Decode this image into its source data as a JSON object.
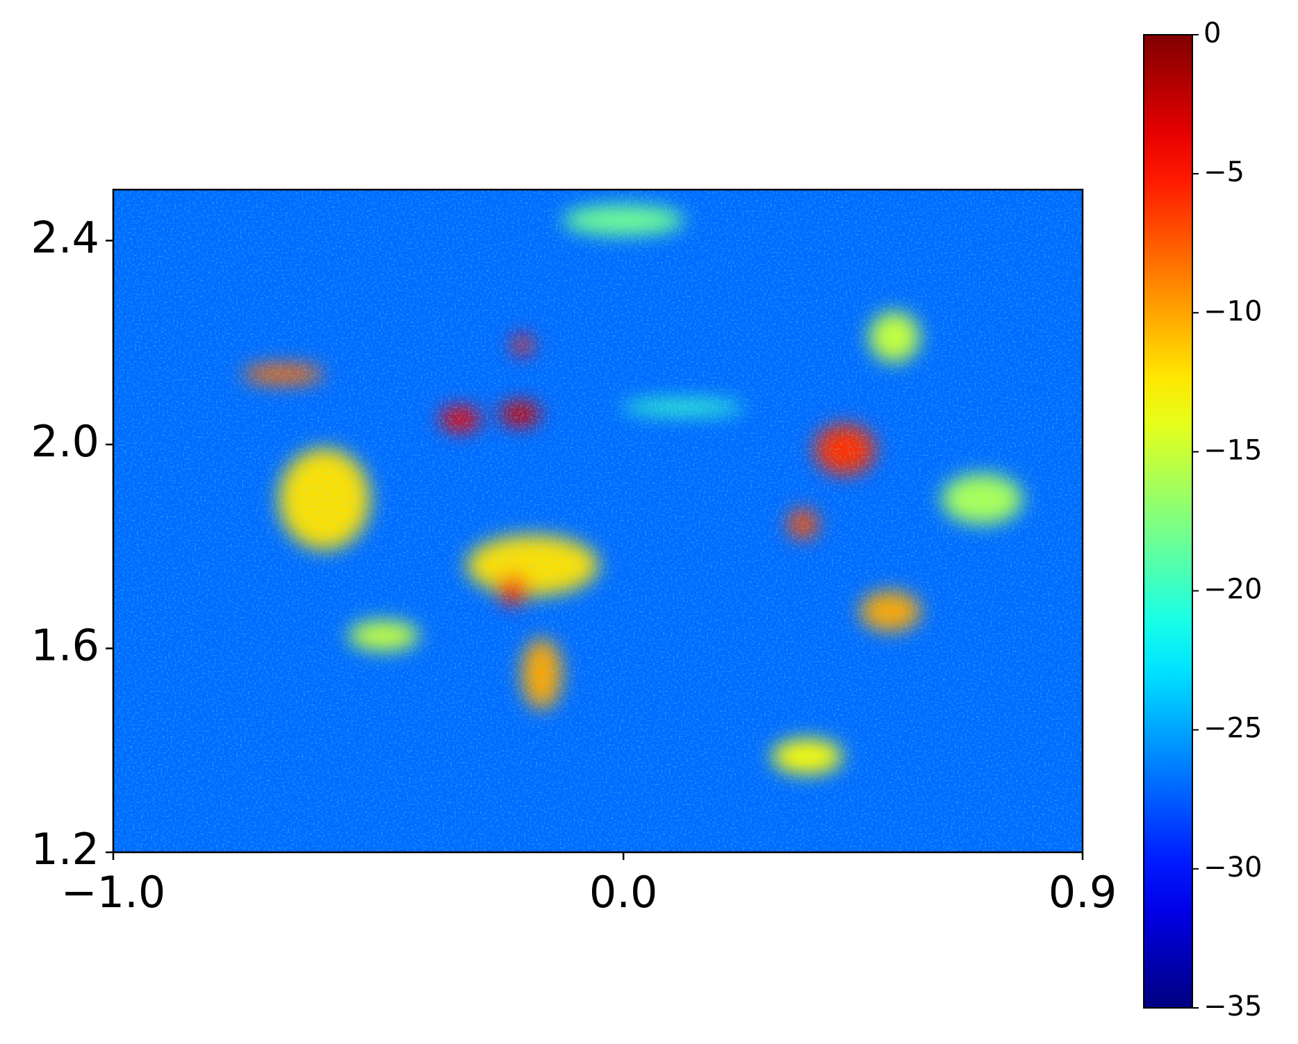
{
  "chart_data": {
    "type": "heatmap",
    "colormap": "jet",
    "xlim": [
      -1.0,
      0.9
    ],
    "xticks": [
      {
        "value": -1.0,
        "label": "−1.0"
      },
      {
        "value": 0,
        "label": "0.0"
      },
      0.9
    ],
    "ylim": [
      1.2,
      2.5
    ],
    "yticks": [
      1.2,
      1.6,
      {
        "value": 2,
        "label": "2.0"
      },
      2.4
    ],
    "clim": [
      -35,
      0
    ],
    "cticks": [
      {
        "value": 0,
        "label": "0"
      },
      {
        "value": -5,
        "label": "−5"
      },
      {
        "value": -10,
        "label": "−10"
      },
      {
        "value": -15,
        "label": "−15"
      },
      {
        "value": -20,
        "label": "−20"
      },
      {
        "value": -25,
        "label": "−25"
      },
      {
        "value": -30,
        "label": "−30"
      },
      {
        "value": -35,
        "label": "−35"
      }
    ],
    "background": -27,
    "spots": [
      {
        "x": 0.116,
        "y": 2.073,
        "rx": 0.12,
        "ry": 0.015,
        "value": -20
      },
      {
        "x": 0.0,
        "y": 2.44,
        "rx": 0.12,
        "ry": 0.03,
        "value": -18
      },
      {
        "x": 0.703,
        "y": 1.893,
        "rx": 0.08,
        "ry": 0.05,
        "value": -16
      },
      {
        "x": 0.531,
        "y": 2.211,
        "rx": 0.05,
        "ry": 0.05,
        "value": -15
      },
      {
        "x": -0.47,
        "y": 1.625,
        "rx": 0.07,
        "ry": 0.03,
        "value": -15
      },
      {
        "x": 0.36,
        "y": 1.388,
        "rx": 0.07,
        "ry": 0.035,
        "value": -13
      },
      {
        "x": -0.586,
        "y": 1.893,
        "rx": 0.09,
        "ry": 0.1,
        "value": -12
      },
      {
        "x": -0.178,
        "y": 1.763,
        "rx": 0.13,
        "ry": 0.06,
        "value": -12
      },
      {
        "x": -0.16,
        "y": 1.55,
        "rx": 0.04,
        "ry": 0.07,
        "value": -10
      },
      {
        "x": 0.523,
        "y": 1.673,
        "rx": 0.06,
        "ry": 0.04,
        "value": -10
      },
      {
        "x": -0.667,
        "y": 2.138,
        "rx": 0.08,
        "ry": 0.02,
        "value": -8
      },
      {
        "x": 0.352,
        "y": 1.844,
        "rx": 0.03,
        "ry": 0.03,
        "value": -7
      },
      {
        "x": 0.434,
        "y": 1.99,
        "rx": 0.06,
        "ry": 0.05,
        "value": -6
      },
      {
        "x": -0.198,
        "y": 2.195,
        "rx": 0.02,
        "ry": 0.02,
        "value": -5
      },
      {
        "x": -0.216,
        "y": 1.714,
        "rx": 0.03,
        "ry": 0.03,
        "value": -5
      },
      {
        "x": -0.32,
        "y": 2.05,
        "rx": 0.04,
        "ry": 0.025,
        "value": -4
      },
      {
        "x": -0.2025,
        "y": 2.06,
        "rx": 0.04,
        "ry": 0.025,
        "value": -3
      }
    ]
  }
}
